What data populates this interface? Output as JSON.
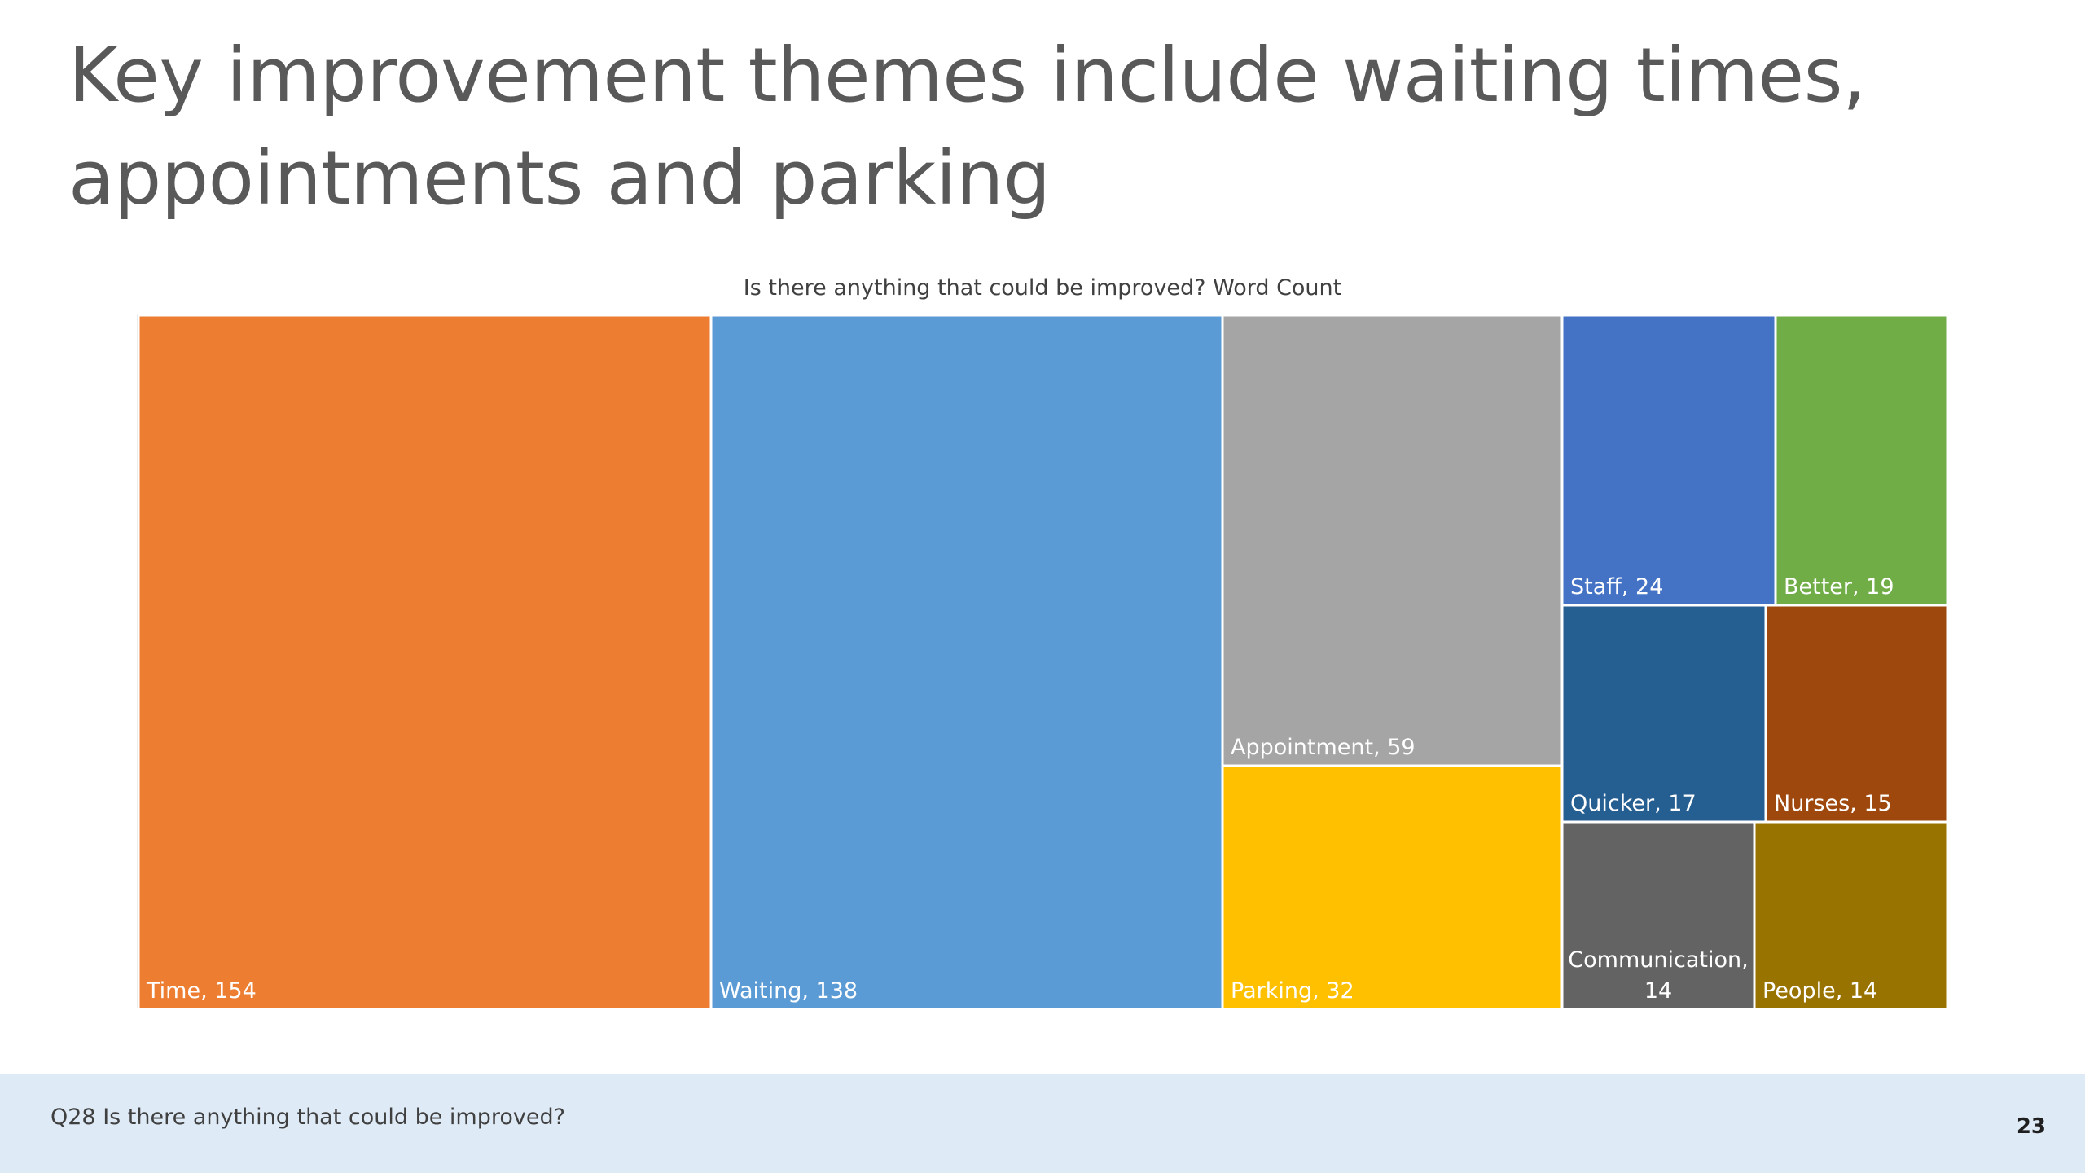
{
  "slide": {
    "title": "Key improvement themes include waiting times, appointments and parking",
    "footer_note": "Q28 Is there anything that could be improved?",
    "page_number": "23"
  },
  "chart_data": {
    "type": "treemap",
    "title": "Is there anything that could be improved? Word Count",
    "categories": [
      "Time",
      "Waiting",
      "Appointment",
      "Parking",
      "Staff",
      "Better",
      "Quicker",
      "Nurses",
      "Communication",
      "People"
    ],
    "values": [
      154,
      138,
      59,
      32,
      24,
      19,
      17,
      15,
      14,
      14
    ],
    "labels": [
      "Time, 154",
      "Waiting, 138",
      "Appointment, 59",
      "Parking, 32",
      "Staff, 24",
      "Better, 19",
      "Quicker, 17",
      "Nurses, 15",
      "Communication, 14",
      "People, 14"
    ],
    "colors": [
      "#ed7d31",
      "#5b9bd5",
      "#a5a5a5",
      "#ffc000",
      "#4472c4",
      "#70ad47",
      "#255e91",
      "#9e480e",
      "#636363",
      "#997300"
    ],
    "legend": "none"
  }
}
